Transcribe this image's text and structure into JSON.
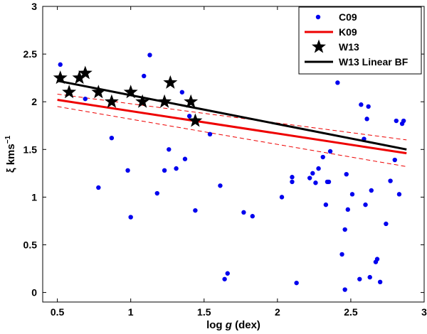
{
  "chart_data": {
    "type": "scatter",
    "title": "",
    "xlabel_prefix": "log ",
    "xlabel_var": "g",
    "xlabel_suffix": " (dex)",
    "ylabel_main": "ξ kms",
    "ylabel_exp": "−1",
    "xlim": [
      0.4,
      3
    ],
    "ylim": [
      -0.1,
      3
    ],
    "xticks": [
      0.5,
      1,
      1.5,
      2,
      2.5,
      3
    ],
    "xtick_labels": [
      "0.5",
      "1",
      "1.5",
      "2",
      "2.5",
      "3"
    ],
    "yticks": [
      0,
      0.5,
      1,
      1.5,
      2,
      2.5,
      3
    ],
    "ytick_labels": [
      "0",
      "0.5",
      "1",
      "1.5",
      "2",
      "2.5",
      "3"
    ],
    "legend_position": "top-right",
    "colors": {
      "c09": "#0000ee",
      "k09": "#ee0000",
      "w13": "#000000",
      "w13_fit": "#000000"
    },
    "series": [
      {
        "name": "C09",
        "kind": "points",
        "points": [
          [
            0.52,
            2.39
          ],
          [
            0.69,
            2.03
          ],
          [
            0.78,
            1.1
          ],
          [
            0.87,
            1.62
          ],
          [
            0.98,
            1.28
          ],
          [
            1.0,
            0.79
          ],
          [
            1.09,
            2.27
          ],
          [
            1.13,
            2.49
          ],
          [
            1.18,
            1.04
          ],
          [
            1.23,
            1.28
          ],
          [
            1.26,
            1.5
          ],
          [
            1.31,
            1.3
          ],
          [
            1.35,
            2.1
          ],
          [
            1.37,
            1.4
          ],
          [
            1.4,
            1.85
          ],
          [
            1.44,
            0.86
          ],
          [
            1.54,
            1.66
          ],
          [
            1.61,
            1.12
          ],
          [
            1.64,
            0.14
          ],
          [
            1.66,
            0.2
          ],
          [
            1.77,
            0.84
          ],
          [
            1.83,
            0.8
          ],
          [
            2.03,
            1.0
          ],
          [
            2.1,
            1.21
          ],
          [
            2.1,
            1.16
          ],
          [
            2.13,
            0.1
          ],
          [
            2.22,
            1.2
          ],
          [
            2.24,
            1.25
          ],
          [
            2.26,
            1.15
          ],
          [
            2.28,
            1.3
          ],
          [
            2.31,
            1.42
          ],
          [
            2.33,
            0.92
          ],
          [
            2.34,
            1.16
          ],
          [
            2.35,
            1.16
          ],
          [
            2.36,
            1.48
          ],
          [
            2.41,
            2.2
          ],
          [
            2.44,
            0.4
          ],
          [
            2.46,
            0.66
          ],
          [
            2.46,
            0.03
          ],
          [
            2.47,
            1.24
          ],
          [
            2.48,
            0.87
          ],
          [
            2.51,
            1.03
          ],
          [
            2.56,
            0.14
          ],
          [
            2.57,
            1.97
          ],
          [
            2.59,
            1.61
          ],
          [
            2.6,
            0.92
          ],
          [
            2.61,
            1.82
          ],
          [
            2.62,
            1.95
          ],
          [
            2.63,
            0.16
          ],
          [
            2.64,
            1.07
          ],
          [
            2.67,
            0.32
          ],
          [
            2.68,
            0.35
          ],
          [
            2.7,
            0.11
          ],
          [
            2.74,
            0.72
          ],
          [
            2.77,
            1.17
          ],
          [
            2.8,
            1.39
          ],
          [
            2.81,
            1.8
          ],
          [
            2.83,
            1.03
          ],
          [
            2.85,
            1.77
          ],
          [
            2.86,
            1.8
          ]
        ]
      },
      {
        "name": "K09",
        "kind": "line",
        "x": [
          0.5,
          2.88
        ],
        "y": [
          2.02,
          1.46
        ],
        "band_upper": [
          2.08,
          1.6
        ],
        "band_lower": [
          1.95,
          1.32
        ]
      },
      {
        "name": "W13",
        "kind": "stars",
        "points": [
          [
            0.52,
            2.25
          ],
          [
            0.58,
            2.1
          ],
          [
            0.65,
            2.25
          ],
          [
            0.69,
            2.3
          ],
          [
            0.78,
            2.1
          ],
          [
            0.87,
            2.0
          ],
          [
            1.0,
            2.1
          ],
          [
            1.08,
            2.0
          ],
          [
            1.23,
            2.0
          ],
          [
            1.27,
            2.2
          ],
          [
            1.41,
            2.0
          ],
          [
            1.44,
            1.8
          ]
        ]
      },
      {
        "name": "W13 Linear BF",
        "kind": "line",
        "x": [
          0.5,
          2.88
        ],
        "y": [
          2.22,
          1.5
        ]
      }
    ]
  }
}
